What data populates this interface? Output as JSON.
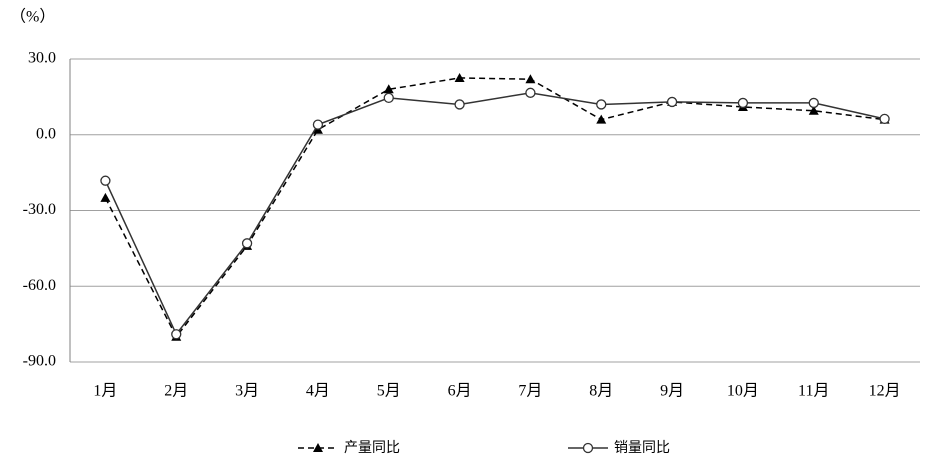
{
  "chart_data": {
    "type": "line",
    "unit_label": "（%）",
    "categories": [
      "1月",
      "2月",
      "3月",
      "4月",
      "5月",
      "6月",
      "7月",
      "8月",
      "9月",
      "10月",
      "11月",
      "12月"
    ],
    "series": [
      {
        "name": "产量同比",
        "color": "#000000",
        "dash": "6,4",
        "marker": "triangle",
        "values": [
          -25,
          -80,
          -44,
          2,
          18,
          22.5,
          22,
          6,
          13,
          11,
          9.5,
          6
        ]
      },
      {
        "name": "销量同比",
        "color": "#333333",
        "dash": "none",
        "marker": "circle",
        "values": [
          -18.2,
          -79,
          -43,
          4,
          14.6,
          12,
          16.6,
          12,
          13,
          12.6,
          12.6,
          6.3
        ]
      }
    ],
    "ylim": [
      -90,
      30
    ],
    "yticks": [
      {
        "value": -90,
        "label": "-90.0"
      },
      {
        "value": -60,
        "label": "-60.0"
      },
      {
        "value": -30,
        "label": "-30.0"
      },
      {
        "value": 0,
        "label": "0.0"
      },
      {
        "value": 30,
        "label": "30.0"
      }
    ],
    "grid": true,
    "legend": "bottom"
  }
}
